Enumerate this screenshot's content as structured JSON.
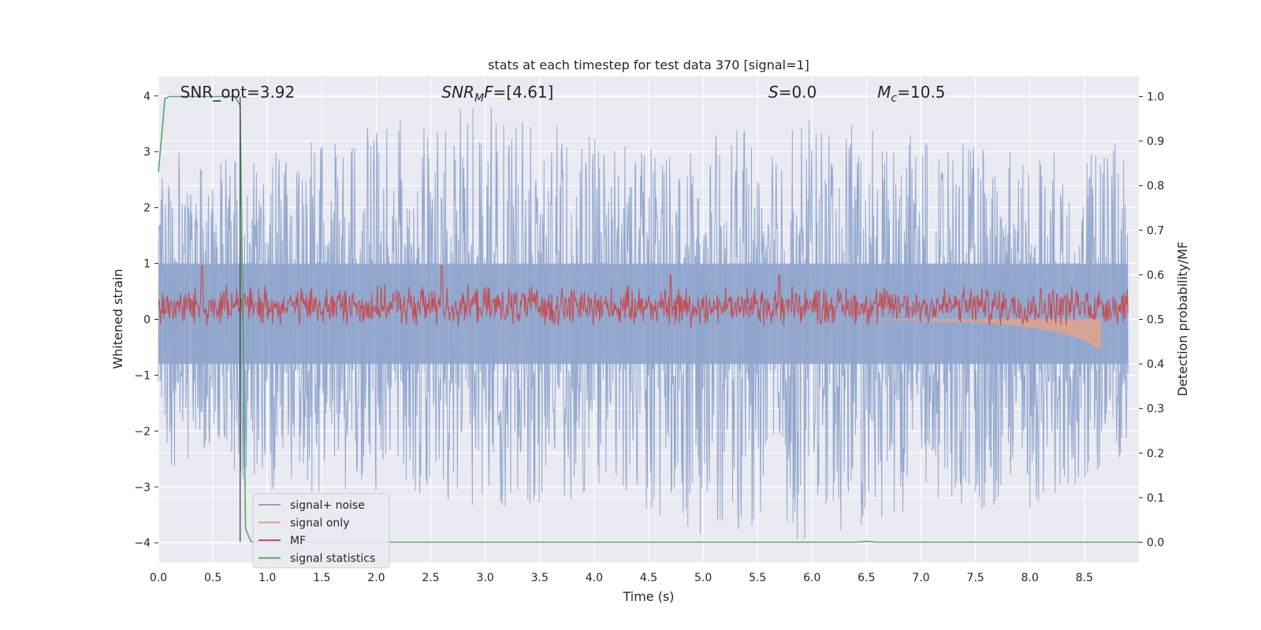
{
  "chart_data": {
    "type": "line",
    "title": "stats at each timestep for test data 370 [signal=1]",
    "xlabel": "Time (s)",
    "ylabel": "Whitened strain",
    "y2label": "Detection probability/MF",
    "xlim": [
      0.0,
      9.0
    ],
    "ylim": [
      -4.35,
      4.35
    ],
    "y2lim": [
      -0.045,
      1.045
    ],
    "xticks": [
      "0.0",
      "0.5",
      "1.0",
      "1.5",
      "2.0",
      "2.5",
      "3.0",
      "3.5",
      "4.0",
      "4.5",
      "5.0",
      "5.5",
      "6.0",
      "6.5",
      "7.0",
      "7.5",
      "8.0",
      "8.5"
    ],
    "yticks": [
      "−4",
      "−3",
      "−2",
      "−1",
      "0",
      "1",
      "2",
      "3",
      "4"
    ],
    "y2ticks": [
      "0.0",
      "0.1",
      "0.2",
      "0.3",
      "0.4",
      "0.5",
      "0.6",
      "0.7",
      "0.8",
      "0.9",
      "1.0"
    ],
    "grid": true,
    "legend_position": "lower-left",
    "annotations": [
      {
        "text": "SNR_opt=3.92",
        "x": 0.2
      },
      {
        "text": "SNR_MF=[4.61]",
        "x": 2.6
      },
      {
        "text": "S=0.0",
        "x": 5.6
      },
      {
        "text": "M_c=10.5",
        "x": 6.6
      }
    ],
    "series": [
      {
        "name": "signal+ noise",
        "color": "#8fa4cc",
        "axis": "left",
        "description_range": [
          -4.0,
          4.0
        ],
        "envelope_x": [
          0.0,
          1.0,
          2.0,
          3.0,
          4.0,
          5.0,
          6.0,
          7.0,
          8.0,
          8.9
        ],
        "envelope_hi": [
          3.0,
          3.0,
          3.5,
          3.9,
          3.3,
          3.3,
          3.6,
          3.3,
          3.0,
          3.3
        ],
        "envelope_lo": [
          -2.6,
          -3.1,
          -3.1,
          -3.4,
          -3.2,
          -3.9,
          -4.0,
          -3.4,
          -3.4,
          -2.5
        ]
      },
      {
        "name": "signal only",
        "color": "#dda48f",
        "axis": "left",
        "x": [
          0.0,
          6.5,
          7.0,
          7.5,
          7.8,
          8.0,
          8.2,
          8.4,
          8.55,
          8.65
        ],
        "amplitude": [
          0.0,
          0.0,
          0.02,
          0.05,
          0.09,
          0.14,
          0.2,
          0.3,
          0.42,
          0.55
        ]
      },
      {
        "name": "MF",
        "color": "#c44e52",
        "axis": "right",
        "band": [
          0.5,
          0.56
        ],
        "peaks_x": [
          0.4,
          2.6,
          4.7,
          5.7
        ],
        "peaks_y": [
          0.62,
          0.62,
          0.6,
          0.6
        ]
      },
      {
        "name": "signal statistics",
        "color": "#55a868",
        "axis": "right",
        "x": [
          0.0,
          0.06,
          0.1,
          0.2,
          0.4,
          0.6,
          0.7,
          0.75,
          0.8,
          0.85,
          1.0,
          6.4,
          6.5,
          6.6,
          9.0
        ],
        "y": [
          0.83,
          0.995,
          1.0,
          1.0,
          1.0,
          1.0,
          1.0,
          0.98,
          0.03,
          0.001,
          0.0,
          0.0,
          0.002,
          0.0,
          0.0
        ]
      }
    ]
  }
}
